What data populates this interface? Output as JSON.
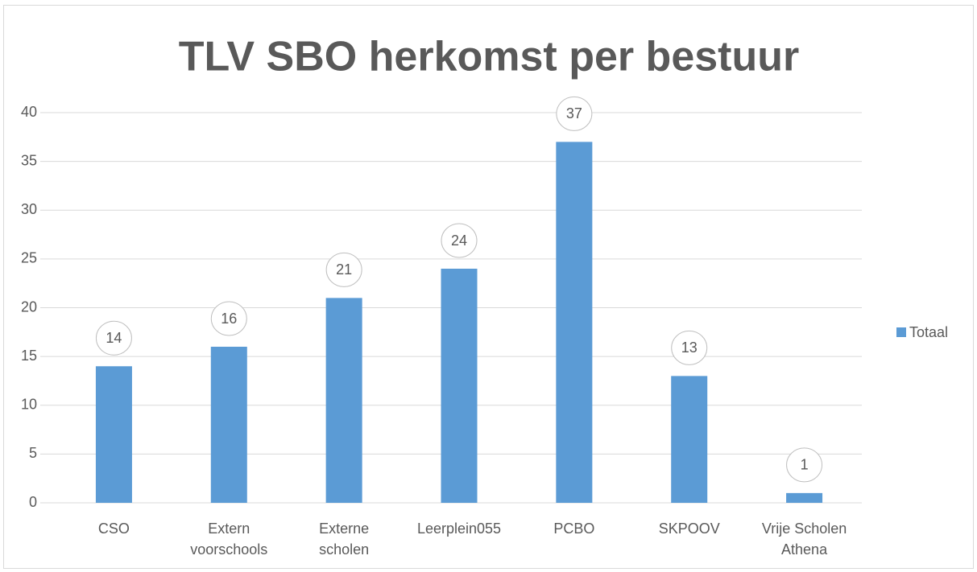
{
  "chart_data": {
    "type": "bar",
    "title": "TLV SBO herkomst per bestuur",
    "categories": [
      "CSO",
      "Extern\nvoorschools",
      "Externe\nscholen",
      "Leerplein055",
      "PCBO",
      "SKPOOV",
      "Vrije Scholen\nAthena"
    ],
    "series": [
      {
        "name": "Totaal",
        "color": "#5b9bd5",
        "values": [
          14,
          16,
          21,
          24,
          37,
          13,
          1
        ]
      }
    ],
    "ylim": [
      0,
      40
    ],
    "yticks": [
      0,
      5,
      10,
      15,
      20,
      25,
      30,
      35,
      40
    ],
    "grid": true,
    "legend": "right",
    "data_labels": true
  }
}
